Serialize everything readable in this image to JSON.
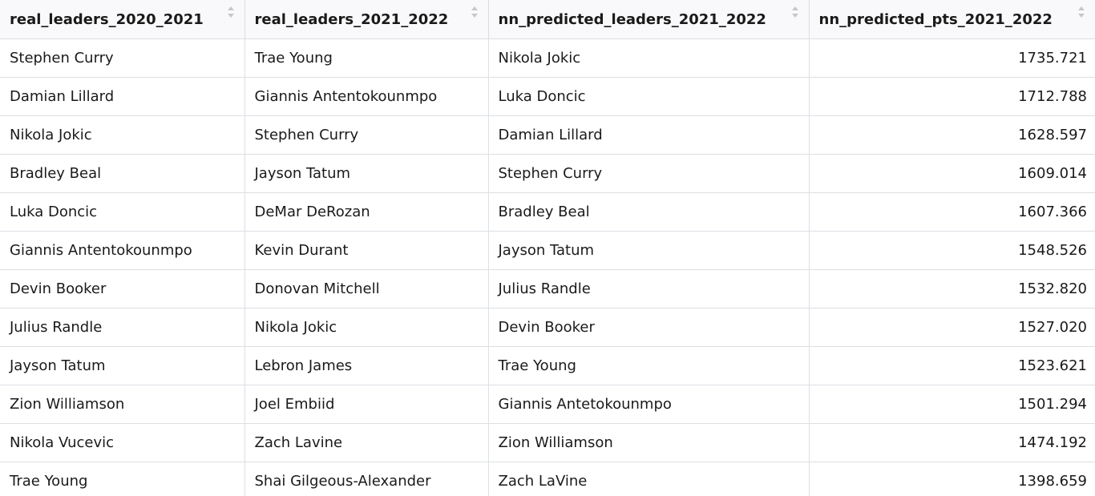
{
  "table": {
    "columns": [
      {
        "label": "real_leaders_2020_2021",
        "sort_icon": "sort-arrows-icon"
      },
      {
        "label": "real_leaders_2021_2022",
        "sort_icon": "sort-arrows-icon"
      },
      {
        "label": "nn_predicted_leaders_2021_2022",
        "sort_icon": "sort-arrows-icon"
      },
      {
        "label": "nn_predicted_pts_2021_2022",
        "sort_icon": "sort-arrows-icon"
      }
    ],
    "rows": [
      [
        "Stephen Curry",
        "Trae Young",
        "Nikola Jokic",
        "1735.721"
      ],
      [
        "Damian Lillard",
        "Giannis Antentokounmpo",
        "Luka Doncic",
        "1712.788"
      ],
      [
        "Nikola Jokic",
        "Stephen Curry",
        "Damian Lillard",
        "1628.597"
      ],
      [
        "Bradley Beal",
        "Jayson Tatum",
        "Stephen Curry",
        "1609.014"
      ],
      [
        "Luka Doncic",
        "DeMar DeRozan",
        "Bradley Beal",
        "1607.366"
      ],
      [
        "Giannis Antentokounmpo",
        "Kevin Durant",
        "Jayson Tatum",
        "1548.526"
      ],
      [
        "Devin Booker",
        "Donovan Mitchell",
        "Julius Randle",
        "1532.820"
      ],
      [
        "Julius Randle",
        "Nikola Jokic",
        "Devin Booker",
        "1527.020"
      ],
      [
        "Jayson Tatum",
        "Lebron James",
        "Trae Young",
        "1523.621"
      ],
      [
        "Zion Williamson",
        "Joel Embiid",
        "Giannis Antetokounmpo",
        "1501.294"
      ],
      [
        "Nikola Vucevic",
        "Zach Lavine",
        "Zion Williamson",
        "1474.192"
      ],
      [
        "Trae Young",
        "Shai Gilgeous-Alexander",
        "Zach LaVine",
        "1398.659"
      ]
    ]
  },
  "colors": {
    "header_bg": "#f9f9fb",
    "border": "#dcdfe4",
    "sort_icon": "#c4c7cc",
    "text": "#1a1a1a"
  }
}
